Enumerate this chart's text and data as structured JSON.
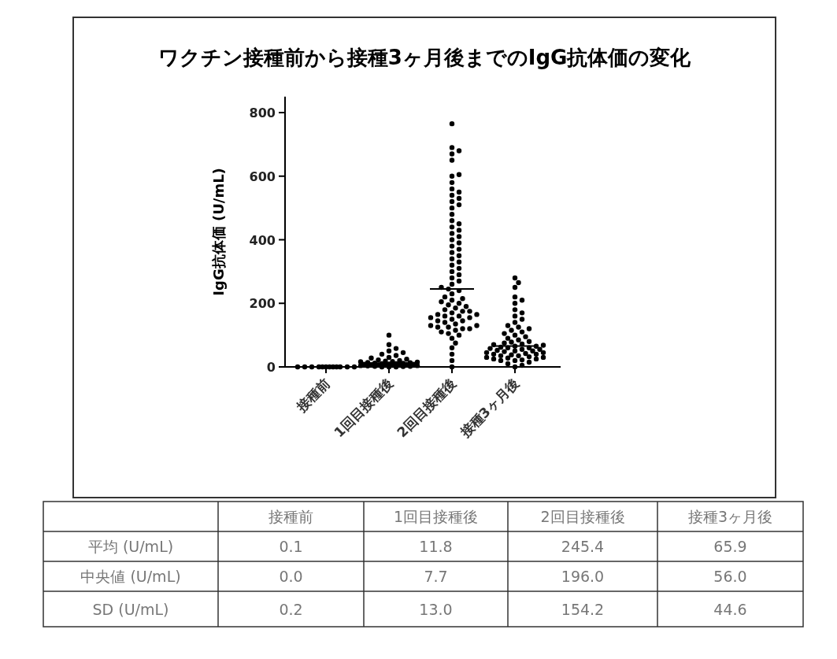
{
  "chart_data": [
    {
      "type": "scatter",
      "title": "ワクチン接種前から接種3ヶ月後までのIgG抗体価の変化",
      "ylabel": "IgG抗体価 (U/mL)",
      "categories": [
        "接種前",
        "1回目接種後",
        "2回目接種後",
        "接種3ヶ月後"
      ],
      "ylim": [
        0,
        850
      ],
      "yticks": [
        0,
        200,
        400,
        600,
        800
      ],
      "series": [
        {
          "type": "scatter",
          "marker": "circle",
          "color": "#000000",
          "x": [
            "接種前",
            "接種前",
            "接種前",
            "接種前",
            "接種前",
            "接種前",
            "接種前",
            "接種前",
            "接種前",
            "接種前",
            "接種前",
            "接種前"
          ],
          "values": [
            0,
            0,
            0,
            0,
            0,
            0,
            0,
            0,
            0,
            0,
            0,
            0
          ]
        },
        {
          "type": "scatter",
          "marker": "circle",
          "color": "#000000",
          "x": [
            "1回目接種後",
            "1回目接種後",
            "1回目接種後",
            "1回目接種後",
            "1回目接種後",
            "1回目接種後",
            "1回目接種後",
            "1回目接種後",
            "1回目接種後",
            "1回目接種後",
            "1回目接種後",
            "1回目接種後",
            "1回目接種後",
            "1回目接種後",
            "1回目接種後",
            "1回目接種後",
            "1回目接種後",
            "1回目接種後",
            "1回目接種後",
            "1回目接種後",
            "1回目接種後",
            "1回目接種後",
            "1回目接種後",
            "1回目接種後",
            "1回目接種後",
            "1回目接種後",
            "1回目接種後",
            "1回目接種後",
            "1回目接種後",
            "1回目接種後",
            "1回目接種後",
            "1回目接種後",
            "1回目接種後",
            "1回目接種後",
            "1回目接種後",
            "1回目接種後",
            "1回目接種後",
            "1回目接種後",
            "1回目接種後",
            "1回目接種後"
          ],
          "values": [
            0,
            0,
            0,
            1,
            2,
            2,
            3,
            4,
            4,
            5,
            5,
            6,
            6,
            7,
            7,
            8,
            8,
            9,
            10,
            10,
            11,
            12,
            13,
            14,
            15,
            16,
            17,
            18,
            20,
            22,
            24,
            28,
            30,
            36,
            40,
            45,
            50,
            58,
            70,
            100
          ]
        },
        {
          "type": "scatter",
          "marker": "circle",
          "color": "#000000",
          "x": [
            "2回目接種後",
            "2回目接種後",
            "2回目接種後",
            "2回目接種後",
            "2回目接種後",
            "2回目接種後",
            "2回目接種後",
            "2回目接種後",
            "2回目接種後",
            "2回目接種後",
            "2回目接種後",
            "2回目接種後",
            "2回目接種後",
            "2回目接種後",
            "2回目接種後",
            "2回目接種後",
            "2回目接種後",
            "2回目接種後",
            "2回目接種後",
            "2回目接種後",
            "2回目接種後",
            "2回目接種後",
            "2回目接種後",
            "2回目接種後",
            "2回目接種後",
            "2回目接種後",
            "2回目接種後",
            "2回目接種後",
            "2回目接種後",
            "2回目接種後",
            "2回目接種後",
            "2回目接種後",
            "2回目接種後",
            "2回目接種後",
            "2回目接種後",
            "2回目接種後",
            "2回目接種後",
            "2回目接種後",
            "2回目接種後",
            "2回目接種後",
            "2回目接種後",
            "2回目接種後",
            "2回目接種後",
            "2回目接種後",
            "2回目接種後",
            "2回目接種後",
            "2回目接種後",
            "2回目接種後",
            "2回目接種後",
            "2回目接種後",
            "2回目接種後",
            "2回目接種後",
            "2回目接種後",
            "2回目接種後",
            "2回目接種後",
            "2回目接種後",
            "2回目接種後",
            "2回目接種後",
            "2回目接種後",
            "2回目接種後",
            "2回目接種後",
            "2回目接種後",
            "2回目接種後",
            "2回目接種後",
            "2回目接種後",
            "2回目接種後",
            "2回目接種後",
            "2回目接種後",
            "2回目接種後",
            "2回目接種後",
            "2回目接種後",
            "2回目接種後",
            "2回目接種後",
            "2回目接種後",
            "2回目接種後",
            "2回目接種後",
            "2回目接種後",
            "2回目接種後",
            "2回目接種後",
            "2回目接種後"
          ],
          "values": [
            0,
            20,
            40,
            60,
            75,
            90,
            100,
            110,
            115,
            120,
            120,
            125,
            125,
            130,
            130,
            135,
            140,
            145,
            150,
            155,
            160,
            160,
            165,
            170,
            175,
            180,
            185,
            190,
            200,
            205,
            210,
            220,
            230,
            240,
            245,
            250,
            260,
            270,
            280,
            290,
            300,
            310,
            320,
            330,
            340,
            350,
            360,
            370,
            380,
            390,
            400,
            410,
            420,
            430,
            440,
            450,
            460,
            480,
            500,
            510,
            520,
            530,
            540,
            550,
            560,
            580,
            600,
            605,
            650,
            670,
            680,
            690,
            765,
            105,
            145,
            155,
            165,
            175,
            195,
            215
          ]
        },
        {
          "type": "scatter",
          "marker": "circle",
          "color": "#000000",
          "x": [
            "接種3ヶ月後",
            "接種3ヶ月後",
            "接種3ヶ月後",
            "接種3ヶ月後",
            "接種3ヶ月後",
            "接種3ヶ月後",
            "接種3ヶ月後",
            "接種3ヶ月後",
            "接種3ヶ月後",
            "接種3ヶ月後",
            "接種3ヶ月後",
            "接種3ヶ月後",
            "接種3ヶ月後",
            "接種3ヶ月後",
            "接種3ヶ月後",
            "接種3ヶ月後",
            "接種3ヶ月後",
            "接種3ヶ月後",
            "接種3ヶ月後",
            "接種3ヶ月後",
            "接種3ヶ月後",
            "接種3ヶ月後",
            "接種3ヶ月後",
            "接種3ヶ月後",
            "接種3ヶ月後",
            "接種3ヶ月後",
            "接種3ヶ月後",
            "接種3ヶ月後",
            "接種3ヶ月後",
            "接種3ヶ月後",
            "接種3ヶ月後",
            "接種3ヶ月後",
            "接種3ヶ月後",
            "接種3ヶ月後",
            "接種3ヶ月後",
            "接種3ヶ月後",
            "接種3ヶ月後",
            "接種3ヶ月後",
            "接種3ヶ月後",
            "接種3ヶ月後",
            "接種3ヶ月後",
            "接種3ヶ月後",
            "接種3ヶ月後",
            "接種3ヶ月後",
            "接種3ヶ月後",
            "接種3ヶ月後",
            "接種3ヶ月後",
            "接種3ヶ月後",
            "接種3ヶ月後",
            "接種3ヶ月後",
            "接種3ヶ月後",
            "接種3ヶ月後",
            "接種3ヶ月後",
            "接種3ヶ月後",
            "接種3ヶ月後",
            "接種3ヶ月後",
            "接種3ヶ月後",
            "接種3ヶ月後",
            "接種3ヶ月後",
            "接種3ヶ月後"
          ],
          "values": [
            0,
            5,
            10,
            15,
            20,
            22,
            25,
            28,
            30,
            32,
            35,
            38,
            40,
            42,
            45,
            48,
            50,
            52,
            55,
            58,
            60,
            62,
            65,
            68,
            70,
            72,
            75,
            78,
            80,
            85,
            90,
            95,
            100,
            105,
            110,
            115,
            120,
            125,
            130,
            140,
            150,
            160,
            170,
            180,
            200,
            210,
            220,
            250,
            265,
            280,
            25,
            35,
            45,
            55,
            65,
            40,
            50,
            30,
            60,
            20
          ]
        }
      ],
      "ref_lines": [
        {
          "axis": "y",
          "value": 11.8,
          "color": "#000000"
        },
        {
          "axis": "y",
          "value": 245.4,
          "color": "#000000"
        },
        {
          "axis": "y",
          "value": 65.9,
          "color": "#000000"
        }
      ]
    },
    {
      "type": "other",
      "categories": [
        "接種前",
        "1回目接種後",
        "2回目接種後",
        "接種3ヶ月後"
      ],
      "series": [
        {
          "name": "平均 (U/mL)",
          "values": [
            0.1,
            11.8,
            245.4,
            65.9
          ],
          "value_labels": [
            "0.1",
            "11.8",
            "245.4",
            "65.9"
          ]
        },
        {
          "name": "中央値 (U/mL)",
          "values": [
            0,
            7.7,
            196,
            56
          ],
          "value_labels": [
            "0.0",
            "7.7",
            "196.0",
            "56.0"
          ]
        },
        {
          "name": "SD (U/mL)",
          "values": [
            0.2,
            13,
            154.2,
            44.6
          ],
          "value_labels": [
            "0.2",
            "13.0",
            "154.2",
            "44.6"
          ]
        }
      ]
    }
  ]
}
